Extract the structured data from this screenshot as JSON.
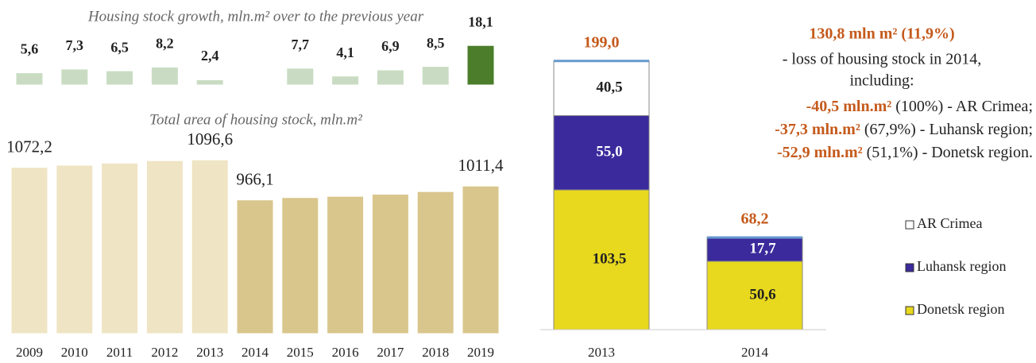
{
  "chart_data": [
    {
      "type": "bar",
      "title": "Housing stock growth, mln.m² over to the previous year",
      "values": [
        5.6,
        7.3,
        6.5,
        8.2,
        2.4,
        null,
        7.7,
        4.1,
        6.9,
        8.5,
        18.1
      ],
      "value_labels": [
        "5,6",
        "7,3",
        "6,5",
        "8,2",
        "2,4",
        null,
        "7,7",
        "4,1",
        "6,9",
        "8,5",
        "18,1"
      ],
      "colors": [
        "#c9dcc3",
        "#c9dcc3",
        "#c9dcc3",
        "#c9dcc3",
        "#c9dcc3",
        null,
        "#c9dcc3",
        "#c9dcc3",
        "#c9dcc3",
        "#c9dcc3",
        "#4b7d2b"
      ],
      "ylim": [
        0,
        20
      ]
    },
    {
      "type": "bar",
      "title": "Total area of housing stock, mln.m²",
      "categories": [
        "2009",
        "2010",
        "2011",
        "2012",
        "2013",
        "2014",
        "2015",
        "2016",
        "2017",
        "2018",
        "2019"
      ],
      "values": [
        1072.2,
        1079.5,
        1086.0,
        1094.2,
        1096.6,
        966.1,
        973.8,
        977.9,
        984.8,
        993.3,
        1011.4
      ],
      "value_labels": [
        "1072,2",
        null,
        null,
        null,
        "1096,6",
        "966,1",
        null,
        null,
        null,
        null,
        "1011,4"
      ],
      "colors": [
        "#efe4c3",
        "#efe4c3",
        "#efe4c3",
        "#efe4c3",
        "#efe4c3",
        "#d9c68c",
        "#d9c68c",
        "#d9c68c",
        "#d9c68c",
        "#d9c68c",
        "#d9c68c"
      ],
      "ylim": [
        530,
        1100
      ]
    },
    {
      "type": "stacked_bar",
      "categories": [
        "2013",
        "2014"
      ],
      "series": [
        {
          "name": "Donetsk region",
          "color": "#e8d81e",
          "values": [
            103.5,
            50.6
          ],
          "value_labels": [
            "103,5",
            "50,6"
          ]
        },
        {
          "name": "Luhansk region",
          "color": "#3a2a9c",
          "values": [
            55.0,
            17.7
          ],
          "value_labels": [
            "55,0",
            "17,7"
          ]
        },
        {
          "name": "AR Crimea",
          "color": "#ffffff",
          "values": [
            40.5,
            null
          ],
          "value_labels": [
            "40,5",
            null
          ]
        }
      ],
      "totals": [
        199.0,
        68.2
      ],
      "total_labels": [
        "199,0",
        "68,2"
      ],
      "ylim": [
        0,
        200
      ],
      "legend": "right",
      "annotation": {
        "headline": "130,8 mln m² (11,9%)",
        "lines": [
          "- loss of housing stock in 2014,",
          "including:"
        ],
        "items": [
          {
            "highlight": "-40,5 mln.m²",
            "text": "(100%) - AR Crimea;"
          },
          {
            "highlight": "-37,3 mln.m²",
            "text": "(67,9%) - Luhansk region;"
          },
          {
            "highlight": "-52,9 mln.m²",
            "text": "(51,1%) - Donetsk region."
          }
        ]
      }
    }
  ]
}
